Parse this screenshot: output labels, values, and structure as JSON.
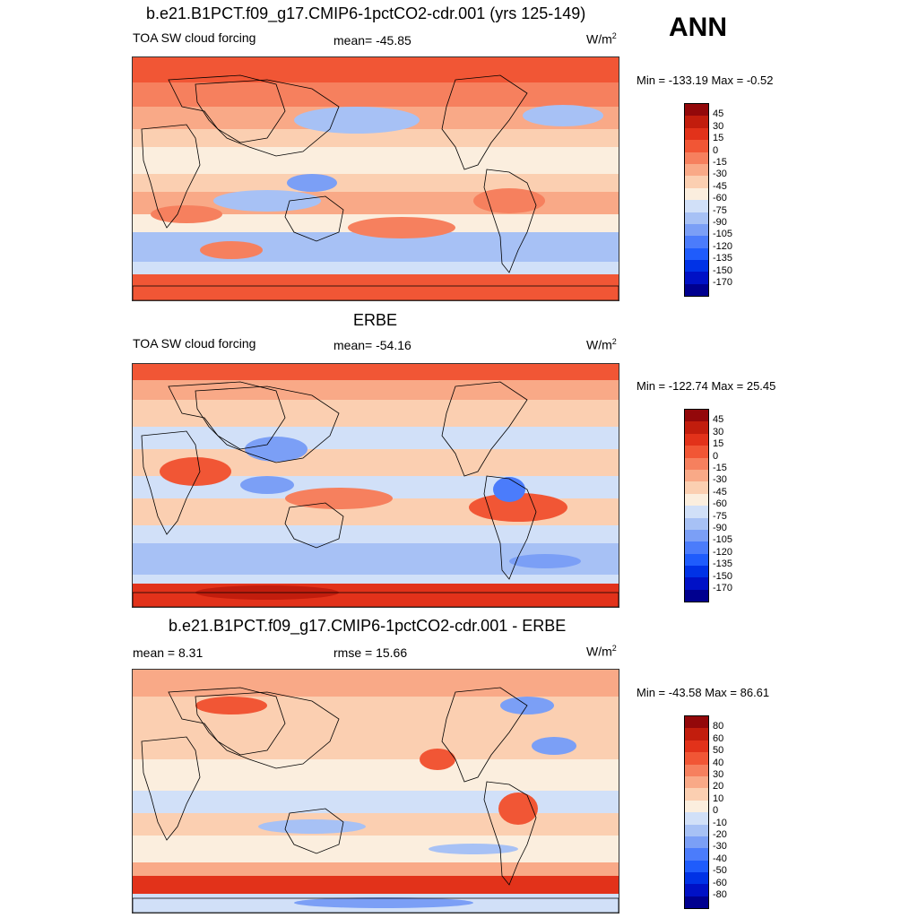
{
  "season": "ANN",
  "units_label": "W/m",
  "units_sup": "2",
  "colors": {
    "levels_18": [
      "#00008f",
      "#0011c6",
      "#0032e6",
      "#1f5cfc",
      "#4b7cfb",
      "#7b9ff6",
      "#a7c1f5",
      "#d1e0f8",
      "#fbeede",
      "#fbcfb1",
      "#f9a987",
      "#f6805e",
      "#f15635",
      "#e2321a",
      "#c21d0d",
      "#93080a"
    ],
    "land_outline": "#000000"
  },
  "panels": [
    {
      "id": "model",
      "title": "b.e21.B1PCT.f09_g17.CMIP6-1pctCO2-cdr.001 (yrs 125-149)",
      "left_label": "TOA SW cloud forcing",
      "center_label": "mean= -45.85",
      "right_label": "W/m",
      "min_max": "Min = -133.19 Max =  -0.52",
      "colorbar": [
        "45",
        "30",
        "15",
        "0",
        "-15",
        "-30",
        "-45",
        "-60",
        "-75",
        "-90",
        "-105",
        "-120",
        "-135",
        "-150",
        "-170"
      ],
      "map_style": "model"
    },
    {
      "id": "obs",
      "title": "ERBE",
      "left_label": "TOA SW cloud forcing",
      "center_label": "mean= -54.16",
      "right_label": "W/m",
      "min_max": "Min = -122.74 Max =  25.45",
      "colorbar": [
        "45",
        "30",
        "15",
        "0",
        "-15",
        "-30",
        "-45",
        "-60",
        "-75",
        "-90",
        "-105",
        "-120",
        "-135",
        "-150",
        "-170"
      ],
      "map_style": "obs"
    },
    {
      "id": "diff",
      "title": "b.e21.B1PCT.f09_g17.CMIP6-1pctCO2-cdr.001 - ERBE",
      "left_label": "mean =   8.31",
      "center_label": "rmse =  15.66",
      "right_label": "W/m",
      "min_max": "Min = -43.58 Max =  86.61",
      "colorbar": [
        "80",
        "60",
        "50",
        "40",
        "30",
        "20",
        "10",
        "0",
        "-10",
        "-20",
        "-30",
        "-40",
        "-50",
        "-60",
        "-80"
      ],
      "map_style": "diff"
    }
  ]
}
